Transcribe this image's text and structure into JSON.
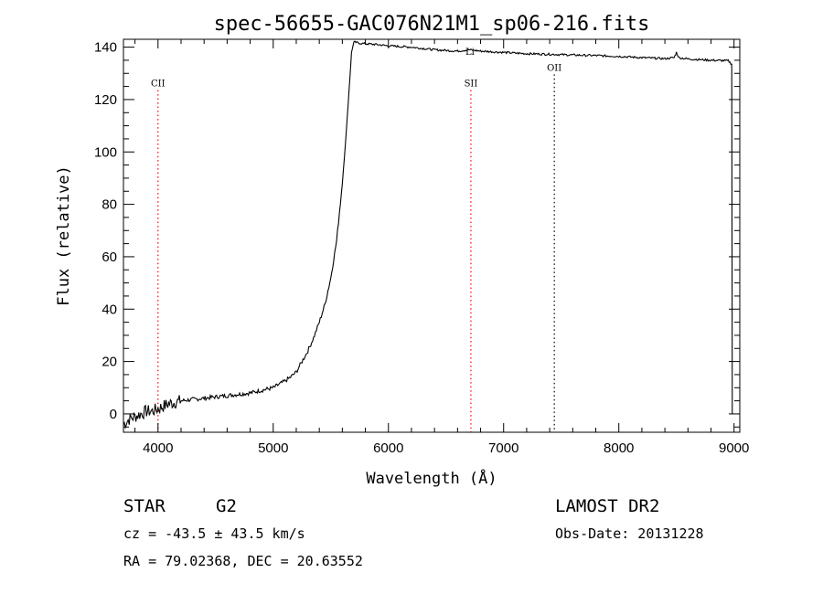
{
  "chart_data": {
    "type": "line",
    "title": "spec-56655-GAC076N21M1_sp06-216.fits",
    "xlabel": "Wavelength (Å)",
    "ylabel": "Flux (relative)",
    "xlim": [
      3700,
      9050
    ],
    "ylim": [
      -7,
      143
    ],
    "xticks": [
      4000,
      5000,
      6000,
      7000,
      8000,
      9000
    ],
    "yticks": [
      0,
      20,
      40,
      60,
      80,
      100,
      120,
      140
    ],
    "grid": false,
    "series": [
      {
        "x": [
          3700,
          3750,
          3800,
          3850,
          3900,
          3950,
          4000,
          4100,
          4200,
          4300,
          4400,
          4500,
          4600,
          4700,
          4800,
          4900,
          5000,
          5100,
          5150,
          5200,
          5250,
          5300,
          5350,
          5400,
          5450,
          5500,
          5550,
          5600,
          5625,
          5650,
          5665,
          5680,
          5700,
          5750,
          5800,
          5900,
          6000,
          6200,
          6400,
          6600,
          6700,
          6800,
          7000,
          7200,
          7400,
          7600,
          7800,
          8000,
          8200,
          8400,
          8480,
          8500,
          8520,
          8600,
          8800,
          8950,
          8980
        ],
        "y": [
          -4,
          -2,
          -1,
          0,
          1,
          1,
          2,
          4,
          5,
          5.5,
          6,
          6.5,
          7,
          7.5,
          8,
          9,
          10,
          12.5,
          14,
          16,
          20,
          24,
          29,
          35,
          42,
          52,
          66,
          88,
          102,
          118,
          128,
          138,
          142,
          141.5,
          141.3,
          141,
          140.5,
          140,
          139,
          138.5,
          139,
          138.5,
          138,
          137.5,
          137.3,
          137,
          136.8,
          136.5,
          136,
          135.6,
          136,
          138,
          136,
          135.5,
          135,
          134.8,
          133.5
        ]
      }
    ],
    "annotations": [
      {
        "label": "CII",
        "x": 4000,
        "y": 125,
        "color": "#ff0000",
        "line": true
      },
      {
        "label": "SII",
        "x": 6716,
        "y": 125,
        "color": "#ff0000",
        "line": true
      },
      {
        "label": "Li",
        "x": 6708,
        "y": 137,
        "color": "#000000",
        "line": false
      },
      {
        "label": "OII",
        "x": 7440,
        "y": 131,
        "color": "#000000",
        "line": true
      }
    ]
  },
  "info": {
    "class": "STAR",
    "subclass": "G2",
    "survey": "LAMOST DR2",
    "cz": "cz = -43.5 ± 43.5 km/s",
    "obsdate": "Obs-Date: 20131228",
    "radec": "RA =  79.02368, DEC =  20.63552"
  }
}
